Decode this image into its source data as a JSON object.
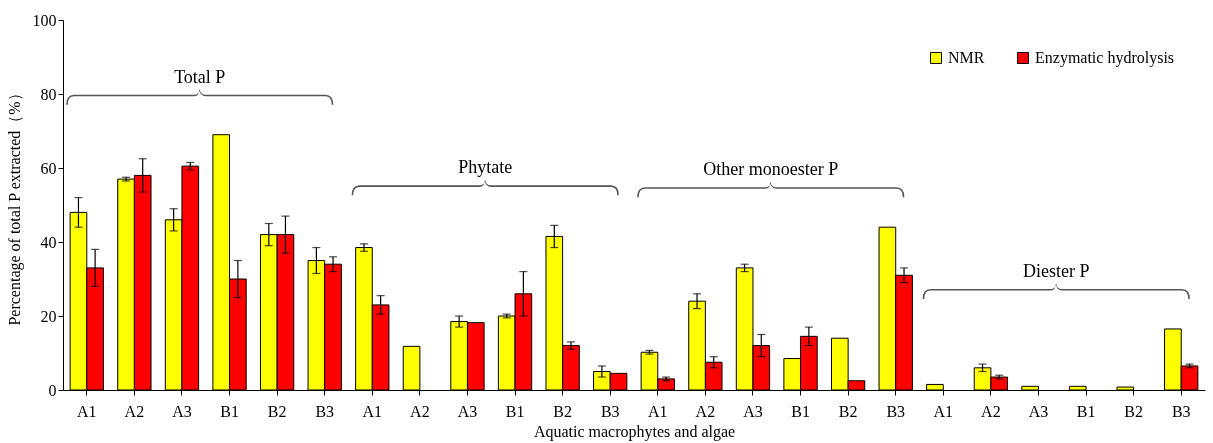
{
  "chart_data": {
    "type": "bar",
    "xlabel": "Aquatic macrophytes and algae",
    "ylabel": "Percentage of total P extracted（%）",
    "categories": [
      "A1",
      "A2",
      "A3",
      "B1",
      "B2",
      "B3",
      "A1",
      "A2",
      "A3",
      "B1",
      "B2",
      "B3",
      "A1",
      "A2",
      "A3",
      "B1",
      "B2",
      "B3",
      "A1",
      "A2",
      "A3",
      "B1",
      "B2",
      "B3"
    ],
    "series": [
      {
        "name": "NMR",
        "color": "#ffff00",
        "values": [
          48,
          57,
          46,
          69,
          42,
          35,
          38.5,
          11.8,
          18.5,
          20,
          41.5,
          5,
          10.2,
          24,
          33,
          8.5,
          14,
          44,
          1.5,
          6,
          1,
          1,
          0.8,
          16.5
        ],
        "errors": [
          4,
          0.5,
          3,
          null,
          3,
          3.5,
          1,
          null,
          1.5,
          0.5,
          3,
          1.5,
          0.5,
          2,
          1,
          null,
          null,
          null,
          null,
          1,
          null,
          null,
          null,
          null
        ]
      },
      {
        "name": "Enzymatic hydrolysis",
        "color": "#ff0000",
        "values": [
          33,
          58,
          60.5,
          30,
          42,
          34,
          23,
          null,
          18.2,
          26,
          12,
          4.5,
          3,
          7.5,
          12,
          14.5,
          2.5,
          31,
          null,
          3.5,
          null,
          null,
          null,
          6.5
        ],
        "errors": [
          5,
          4.5,
          1,
          5,
          5,
          2,
          2.5,
          null,
          null,
          6,
          1,
          null,
          0.5,
          1.5,
          3,
          2.5,
          null,
          2,
          null,
          0.5,
          null,
          null,
          null,
          0.5
        ]
      }
    ],
    "ylim": [
      0,
      100
    ],
    "yticks": [
      0,
      20,
      40,
      60,
      80,
      100
    ],
    "grid": false,
    "legend": "top right",
    "annotations": [
      "Total P",
      "Phytate",
      "Other monoester P",
      "Diester P"
    ]
  }
}
